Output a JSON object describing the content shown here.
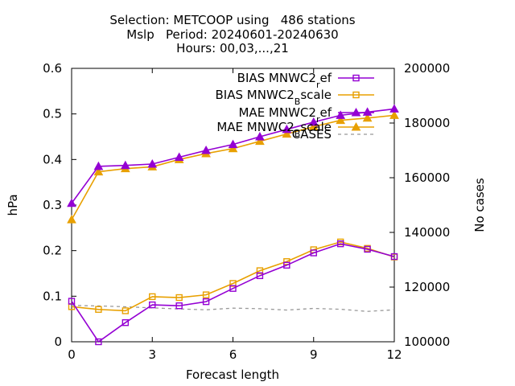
{
  "title_lines": [
    "Selection: METCOOP using   486 stations",
    "Mslp   Period: 20240601-20240630",
    "Hours: 00,03,...,21"
  ],
  "chart_data": {
    "type": "line",
    "xlabel": "Forecast length",
    "ylabel": "hPa",
    "y2label": "No cases",
    "xlim": [
      0,
      12
    ],
    "ylim": [
      0,
      0.6
    ],
    "y2lim": [
      100000,
      200000
    ],
    "xticks": [
      "0",
      "3",
      "6",
      "9",
      "12"
    ],
    "yticks": [
      "0",
      "0.1",
      "0.2",
      "0.3",
      "0.4",
      "0.5",
      "0.6"
    ],
    "y2ticks": [
      "100000",
      "120000",
      "140000",
      "160000",
      "180000",
      "200000"
    ],
    "grid": false,
    "legend_position": "top-right",
    "x": [
      0,
      1,
      2,
      3,
      4,
      5,
      6,
      7,
      8,
      9,
      10,
      11,
      12
    ],
    "series": [
      {
        "name_main": "BIAS MNWC2",
        "name_sub": "r",
        "name_tail": "ef",
        "color": "#9400d3",
        "marker": "square",
        "axis": "left",
        "values": [
          0.089,
          0.0,
          0.042,
          0.081,
          0.079,
          0.088,
          0.117,
          0.145,
          0.168,
          0.195,
          0.215,
          0.203,
          0.187
        ]
      },
      {
        "name_main": "BIAS MNWC2",
        "name_sub": "B",
        "name_tail": "scale",
        "color": "#e8a000",
        "marker": "square",
        "axis": "left",
        "values": [
          0.077,
          0.071,
          0.068,
          0.099,
          0.097,
          0.103,
          0.128,
          0.156,
          0.176,
          0.202,
          0.219,
          0.205,
          0.186
        ]
      },
      {
        "name_main": "MAE MNWC2",
        "name_sub": "r",
        "name_tail": "ef",
        "color": "#9400d3",
        "marker": "triangle",
        "axis": "left",
        "values": [
          0.304,
          0.385,
          0.387,
          0.39,
          0.405,
          0.42,
          0.433,
          0.45,
          0.466,
          0.482,
          0.497,
          0.504,
          0.511
        ]
      },
      {
        "name_main": "MAE MNWC2",
        "name_sub": "B",
        "name_tail": "scale",
        "color": "#e8a000",
        "marker": "triangle",
        "axis": "left",
        "values": [
          0.268,
          0.373,
          0.38,
          0.384,
          0.4,
          0.413,
          0.424,
          0.44,
          0.456,
          0.472,
          0.486,
          0.491,
          0.497
        ]
      },
      {
        "name_main": "CASES",
        "name_sub": "",
        "name_tail": "",
        "color": "#999999",
        "marker": "none",
        "dashed": true,
        "axis": "right",
        "values": [
          113300,
          113100,
          112800,
          112400,
          112000,
          111700,
          112300,
          112100,
          111600,
          112200,
          111900,
          111100,
          111700
        ]
      }
    ]
  }
}
